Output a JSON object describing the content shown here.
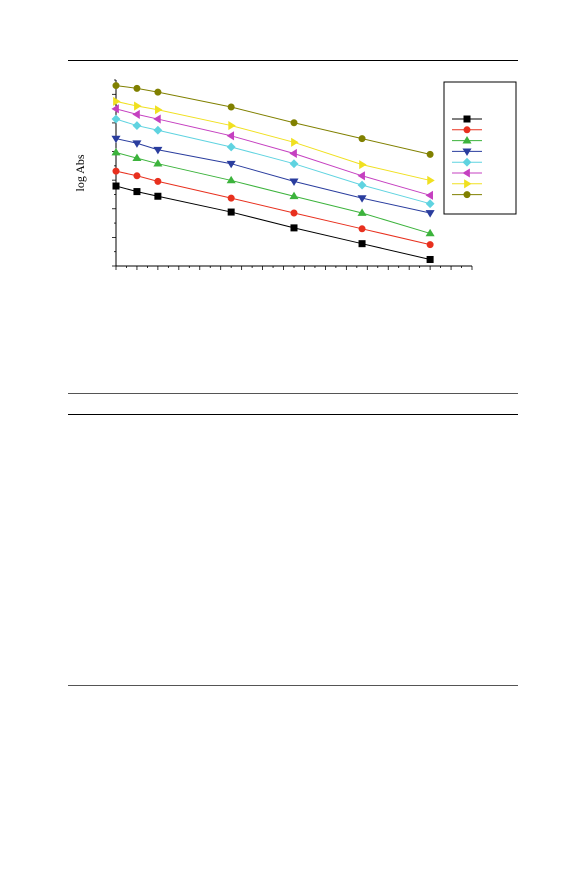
{
  "chart_data": {
    "type": "line",
    "title": "",
    "xlabel": "",
    "ylabel": "log Abs",
    "xlim": [
      0,
      34
    ],
    "ylim": [
      0,
      1
    ],
    "x_tick_count": 34,
    "y_tick_count": 13,
    "legend_position": "top-right",
    "grid": false,
    "x": [
      0,
      2,
      4,
      11,
      17,
      23.5,
      30
    ],
    "series": [
      {
        "marker": "square",
        "color": "#000000",
        "values": [
          0.43,
          0.4,
          0.375,
          0.29,
          0.205,
          0.12,
          0.035
        ]
      },
      {
        "marker": "circle",
        "color": "#e8301e",
        "values": [
          0.51,
          0.485,
          0.455,
          0.365,
          0.285,
          0.2,
          0.115
        ]
      },
      {
        "marker": "triangle-up",
        "color": "#3cb33c",
        "values": [
          0.61,
          0.58,
          0.55,
          0.46,
          0.375,
          0.285,
          0.175
        ]
      },
      {
        "marker": "triangle-down",
        "color": "#2a3d9e",
        "values": [
          0.685,
          0.66,
          0.625,
          0.55,
          0.455,
          0.365,
          0.285
        ]
      },
      {
        "marker": "diamond",
        "color": "#5fd3e0",
        "values": [
          0.79,
          0.755,
          0.73,
          0.64,
          0.55,
          0.435,
          0.335
        ]
      },
      {
        "marker": "triangle-left",
        "color": "#c540c0",
        "values": [
          0.845,
          0.815,
          0.79,
          0.7,
          0.605,
          0.485,
          0.38
        ]
      },
      {
        "marker": "triangle-right",
        "color": "#f0e020",
        "values": [
          0.885,
          0.86,
          0.84,
          0.755,
          0.665,
          0.545,
          0.46
        ]
      },
      {
        "marker": "circle",
        "color": "#808000",
        "values": [
          0.97,
          0.955,
          0.935,
          0.855,
          0.77,
          0.685,
          0.6
        ]
      }
    ]
  }
}
